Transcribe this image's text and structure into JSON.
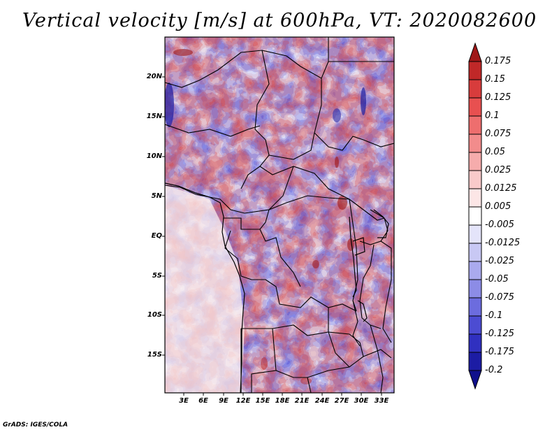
{
  "title": "Vertical velocity [m/s] at 600hPa, VT: 2020082600",
  "footer": "GrADS: IGES/COLA",
  "map": {
    "region": "Central Africa",
    "lon_range": [
      0,
      36
    ],
    "lat_range": [
      -20,
      25
    ],
    "lat_labels": [
      "20N",
      "15N",
      "10N",
      "5N",
      "EQ",
      "5S",
      "10S",
      "15S"
    ],
    "lon_labels": [
      "3E",
      "6E",
      "9E",
      "12E",
      "15E",
      "18E",
      "21E",
      "24E",
      "27E",
      "30E",
      "33E"
    ]
  },
  "colorbar": {
    "labels": [
      "0.175",
      "0.15",
      "0.125",
      "0.1",
      "0.075",
      "0.05",
      "0.025",
      "0.0125",
      "0.005",
      "-0.005",
      "-0.0125",
      "-0.025",
      "-0.05",
      "-0.075",
      "-0.1",
      "-0.125",
      "-0.175",
      "-0.2"
    ],
    "colors": [
      "#a01818",
      "#c02828",
      "#d83c3c",
      "#e85050",
      "#ee6e6e",
      "#f28c8c",
      "#f6acac",
      "#f9caca",
      "#fce6e6",
      "#ffffff",
      "#e4e4fa",
      "#c8c8f4",
      "#aaaaee",
      "#8c8ce6",
      "#6c6cde",
      "#4c4cd2",
      "#3030c0",
      "#1c1ca4",
      "#10108c"
    ]
  }
}
